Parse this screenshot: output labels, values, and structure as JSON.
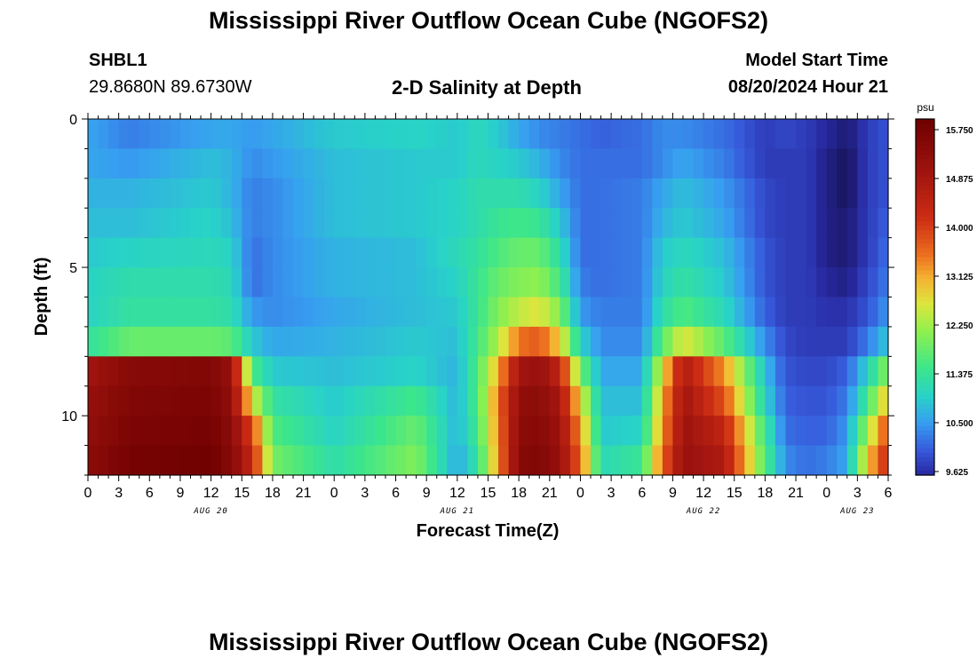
{
  "titles": {
    "top": "Mississippi River Outflow Ocean Cube (NGOFS2)",
    "bottom": "Mississippi River Outflow Ocean Cube (NGOFS2)"
  },
  "station": {
    "id": "SHBL1",
    "coords": "29.8680N  89.6730W"
  },
  "model_start": {
    "label": "Model Start Time",
    "value": "08/20/2024 Hour 21"
  },
  "chart_data": {
    "type": "heatmap",
    "title": "2-D Salinity at Depth",
    "xlabel": "Forecast Time(Z)",
    "ylabel": "Depth (ft)",
    "x_tick_labels": [
      "0",
      "3",
      "6",
      "9",
      "12",
      "15",
      "18",
      "21",
      "0",
      "3",
      "6",
      "9",
      "12",
      "15",
      "18",
      "21",
      "0",
      "3",
      "6",
      "9",
      "12",
      "15",
      "18",
      "21",
      "0",
      "3",
      "6"
    ],
    "date_labels": [
      {
        "label": "AUG 20",
        "hour": 12
      },
      {
        "label": "AUG 21",
        "hour": 36
      },
      {
        "label": "AUG 22",
        "hour": 60
      },
      {
        "label": "AUG 23",
        "hour": 75
      }
    ],
    "xlim": [
      0,
      78
    ],
    "y_ticks": [
      0,
      5,
      10
    ],
    "ylim": [
      0,
      12
    ],
    "colorbar": {
      "unit": "psu",
      "min": 9.625,
      "max": 15.75,
      "ticks": [
        "9.625",
        "10.500",
        "11.375",
        "12.250",
        "13.125",
        "14.000",
        "14.875",
        "15.750"
      ]
    },
    "depth_levels": 12,
    "key_hours": [
      0,
      4,
      12,
      14,
      16,
      18,
      24,
      32,
      36,
      38,
      40,
      42,
      44,
      46,
      48,
      50,
      54,
      56,
      58,
      62,
      66,
      68,
      70,
      72,
      74,
      76,
      78
    ],
    "key_profiles": [
      [
        10.6,
        10.6,
        10.7,
        10.8,
        10.9,
        11.0,
        11.0,
        11.3,
        14.8,
        15.0,
        15.1,
        15.2
      ],
      [
        10.3,
        10.5,
        10.7,
        10.8,
        11.0,
        11.2,
        11.3,
        11.8,
        15.3,
        15.4,
        15.5,
        15.6
      ],
      [
        10.6,
        10.8,
        10.9,
        11.0,
        11.1,
        11.2,
        11.3,
        11.8,
        15.4,
        15.5,
        15.6,
        15.7
      ],
      [
        10.6,
        10.7,
        10.7,
        10.8,
        11.0,
        11.1,
        11.2,
        11.7,
        15.0,
        15.1,
        15.2,
        15.3
      ],
      [
        10.5,
        10.4,
        10.3,
        10.3,
        10.2,
        10.2,
        10.5,
        10.9,
        11.6,
        12.6,
        13.8,
        14.2
      ],
      [
        10.6,
        10.5,
        10.4,
        10.4,
        10.4,
        10.4,
        10.4,
        10.6,
        10.9,
        11.3,
        11.6,
        11.9
      ],
      [
        10.9,
        10.8,
        10.8,
        10.8,
        10.7,
        10.7,
        10.6,
        10.7,
        10.8,
        10.9,
        11.0,
        11.2
      ],
      [
        11.0,
        10.9,
        10.9,
        10.9,
        10.8,
        10.8,
        10.8,
        10.9,
        11.0,
        11.5,
        11.8,
        12.0
      ],
      [
        10.9,
        10.9,
        11.0,
        11.0,
        11.1,
        11.0,
        10.9,
        10.8,
        10.7,
        10.7,
        10.7,
        10.6
      ],
      [
        11.1,
        11.1,
        11.2,
        11.2,
        11.3,
        11.4,
        11.4,
        11.5,
        11.6,
        11.6,
        11.5,
        11.3
      ],
      [
        10.9,
        11.0,
        11.2,
        11.4,
        11.6,
        11.8,
        12.0,
        12.3,
        13.0,
        13.4,
        13.3,
        13.2
      ],
      [
        10.6,
        10.9,
        11.2,
        11.5,
        11.8,
        12.0,
        12.4,
        13.4,
        14.8,
        15.1,
        15.2,
        15.3
      ],
      [
        10.4,
        10.7,
        11.0,
        11.4,
        11.8,
        12.1,
        12.6,
        13.6,
        15.0,
        15.2,
        15.3,
        15.4
      ],
      [
        10.3,
        10.4,
        10.6,
        10.9,
        11.2,
        11.5,
        12.0,
        12.8,
        14.3,
        14.7,
        14.9,
        15.0
      ],
      [
        10.2,
        10.2,
        10.2,
        10.2,
        10.2,
        10.3,
        10.5,
        11.0,
        11.9,
        12.7,
        13.2,
        13.5
      ],
      [
        10.1,
        10.2,
        10.2,
        10.2,
        10.2,
        10.2,
        10.3,
        10.4,
        10.6,
        10.8,
        10.9,
        11.1
      ],
      [
        10.2,
        10.2,
        10.3,
        10.3,
        10.3,
        10.3,
        10.3,
        10.4,
        10.6,
        10.8,
        11.0,
        11.4
      ],
      [
        10.4,
        10.4,
        10.6,
        10.7,
        10.9,
        11.0,
        11.2,
        11.7,
        12.6,
        13.0,
        13.2,
        13.5
      ],
      [
        10.4,
        10.6,
        10.8,
        10.9,
        11.1,
        11.3,
        11.6,
        12.6,
        14.6,
        14.8,
        14.9,
        15.0
      ],
      [
        10.2,
        10.3,
        10.5,
        10.6,
        10.8,
        10.9,
        11.1,
        11.7,
        13.2,
        13.7,
        14.3,
        14.6
      ],
      [
        9.8,
        9.8,
        9.9,
        9.9,
        10.0,
        10.0,
        10.1,
        10.4,
        10.8,
        11.0,
        11.4,
        11.6
      ],
      [
        9.9,
        9.8,
        9.8,
        9.8,
        9.8,
        9.8,
        9.8,
        9.9,
        10.0,
        10.1,
        10.2,
        10.4
      ],
      [
        9.8,
        9.8,
        9.8,
        9.8,
        9.8,
        9.8,
        9.8,
        9.8,
        9.9,
        10.0,
        10.1,
        10.2
      ],
      [
        9.6,
        9.5,
        9.5,
        9.5,
        9.5,
        9.6,
        9.7,
        9.8,
        9.9,
        10.0,
        10.1,
        10.3
      ],
      [
        9.4,
        9.3,
        9.3,
        9.4,
        9.4,
        9.5,
        9.7,
        9.8,
        10.1,
        10.3,
        10.5,
        10.6
      ],
      [
        9.8,
        9.8,
        9.8,
        9.8,
        9.8,
        9.9,
        10.0,
        10.3,
        11.0,
        11.5,
        12.2,
        12.8
      ],
      [
        10.0,
        10.0,
        10.0,
        10.1,
        10.2,
        10.3,
        10.5,
        10.9,
        12.1,
        13.0,
        13.8,
        14.2
      ]
    ]
  }
}
